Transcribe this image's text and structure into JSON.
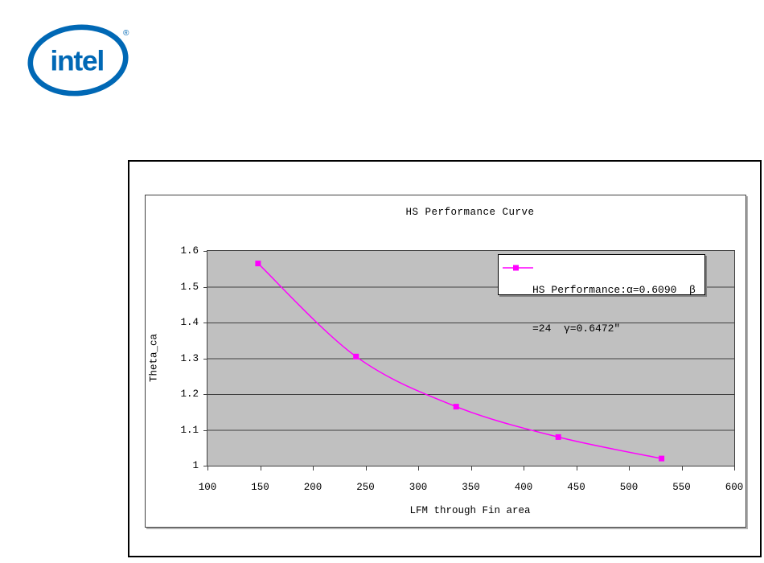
{
  "logo": {
    "brand_text": "intel",
    "registered_mark": "®",
    "color": "#0068B5"
  },
  "chart_data": {
    "type": "line",
    "title": "HS Performance Curve",
    "xlabel": "LFM through Fin area",
    "ylabel": "Theta_ca",
    "xlim": [
      100,
      600
    ],
    "ylim": [
      1.0,
      1.6
    ],
    "x_ticks": [
      100,
      150,
      200,
      250,
      300,
      350,
      400,
      450,
      500,
      550,
      600
    ],
    "y_ticks": [
      1.6,
      1.5,
      1.4,
      1.3,
      1.2,
      1.1,
      1.0
    ],
    "y_tick_labels": [
      "1.6",
      "1.5",
      "1.4",
      "1.3",
      "1.2",
      "1.1",
      "1"
    ],
    "grid": "horizontal-only",
    "plot_background": "#C0C0C0",
    "gridline_color": "#404040",
    "legend_position": "inside-top-right",
    "series": [
      {
        "name": "HS Performance:α=0.6090 β=24 γ=0.6472″",
        "color": "#FF00FF",
        "marker": "square",
        "line_style": "smooth",
        "x": [
          148,
          241,
          336,
          433,
          531
        ],
        "y": [
          1.565,
          1.305,
          1.165,
          1.08,
          1.02
        ]
      }
    ]
  },
  "legend": {
    "line1": "HS Performance:α=0.6090  β",
    "line2": "=24  γ=0.6472″"
  }
}
